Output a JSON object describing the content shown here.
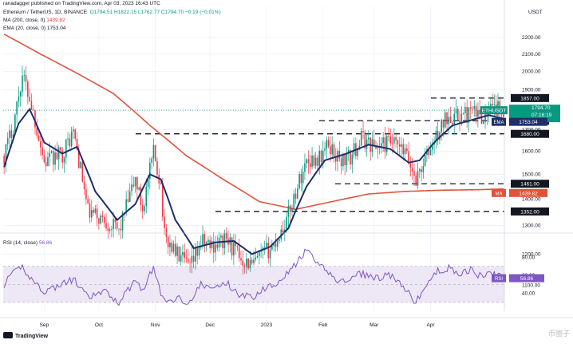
{
  "header": {
    "published": "ranadagger published on TradingView.com, Apr 03, 2023 16:43 UTC",
    "symbol_line": "Ethereum / TetherUS, 1D, BINANCE",
    "ohlc": "O1794.51 H1822.15 L1762.77 C1794.70 −0.19 (−0.01%)",
    "ma_label": "MA (200, close, 0)",
    "ma_value": "1439.82",
    "ema_label": "EMA (20, close, 0)",
    "ema_value": "1753.04",
    "rsi_label": "RSI (14, close)",
    "rsi_value": "56.86"
  },
  "footer": {
    "brand": "TradingView",
    "watermark": "币圈子"
  },
  "colors": {
    "up": "#089981",
    "down": "#f23645",
    "ema": "#1e2f6b",
    "ma": "#e0533a",
    "rsi": "#7e57c2",
    "rsi_band": "#ede7f6"
  },
  "chart_data": [
    {
      "type": "candlestick",
      "title": "Ethereum / TetherUS, 1D, BINANCE",
      "price_axis_unit": "USDT",
      "ylim": [
        1000,
        2400
      ],
      "y_ticks": [
        1100,
        1200,
        1300,
        1400,
        1500,
        1600,
        1700,
        1800,
        1900,
        2000,
        2100,
        2200
      ],
      "x_tick_labels": [
        "Sep",
        "Oct",
        "Nov",
        "Dec",
        "2023",
        "Feb",
        "Mar",
        "Apr"
      ],
      "horizontal_levels": [
        {
          "label": "1857.00",
          "value": 1857
        },
        {
          "label": "1743.00",
          "value": 1743
        },
        {
          "label": "1680.00",
          "value": 1680
        },
        {
          "label": "1461.00",
          "value": 1461
        },
        {
          "label": "1352.00",
          "value": 1352
        }
      ],
      "price_tags": [
        {
          "label": "ETHUSDT",
          "value": "1794.70",
          "sub": "07:16:19",
          "price": 1794.7,
          "color": "#089981"
        },
        {
          "label": "EMA",
          "value": "1753.04",
          "price": 1753.04,
          "color": "#1e2f6b"
        },
        {
          "label": "MA",
          "value": "1439.82",
          "price": 1439.82,
          "color": "#e0533a"
        }
      ],
      "anchors": [
        [
          0,
          1580
        ],
        [
          5,
          1720
        ],
        [
          10,
          1980
        ],
        [
          14,
          1860
        ],
        [
          22,
          1550
        ],
        [
          32,
          1590
        ],
        [
          38,
          1690
        ],
        [
          46,
          1350
        ],
        [
          55,
          1320
        ],
        [
          63,
          1280
        ],
        [
          72,
          1480
        ],
        [
          76,
          1360
        ],
        [
          82,
          1590
        ],
        [
          86,
          1460
        ],
        [
          88,
          1260
        ],
        [
          95,
          1200
        ],
        [
          102,
          1150
        ],
        [
          108,
          1240
        ],
        [
          114,
          1230
        ],
        [
          122,
          1250
        ],
        [
          128,
          1200
        ],
        [
          136,
          1160
        ],
        [
          142,
          1200
        ],
        [
          148,
          1230
        ],
        [
          155,
          1320
        ],
        [
          160,
          1430
        ],
        [
          166,
          1560
        ],
        [
          173,
          1570
        ],
        [
          178,
          1630
        ],
        [
          184,
          1560
        ],
        [
          190,
          1570
        ],
        [
          196,
          1660
        ],
        [
          204,
          1620
        ],
        [
          212,
          1640
        ],
        [
          220,
          1590
        ],
        [
          226,
          1480
        ],
        [
          232,
          1580
        ],
        [
          238,
          1680
        ],
        [
          244,
          1780
        ],
        [
          248,
          1760
        ],
        [
          256,
          1780
        ],
        [
          262,
          1770
        ],
        [
          266,
          1790
        ],
        [
          270,
          1800
        ],
        [
          274,
          1795
        ]
      ],
      "ema_anchors": [
        [
          0,
          1530
        ],
        [
          8,
          1730
        ],
        [
          14,
          1800
        ],
        [
          22,
          1640
        ],
        [
          32,
          1590
        ],
        [
          40,
          1620
        ],
        [
          50,
          1430
        ],
        [
          62,
          1320
        ],
        [
          72,
          1380
        ],
        [
          80,
          1500
        ],
        [
          86,
          1480
        ],
        [
          94,
          1320
        ],
        [
          104,
          1220
        ],
        [
          116,
          1240
        ],
        [
          126,
          1245
        ],
        [
          136,
          1200
        ],
        [
          146,
          1225
        ],
        [
          156,
          1290
        ],
        [
          166,
          1450
        ],
        [
          176,
          1560
        ],
        [
          188,
          1590
        ],
        [
          200,
          1630
        ],
        [
          212,
          1610
        ],
        [
          222,
          1550
        ],
        [
          228,
          1560
        ],
        [
          236,
          1640
        ],
        [
          246,
          1720
        ],
        [
          256,
          1745
        ],
        [
          266,
          1770
        ],
        [
          274,
          1753
        ]
      ],
      "ma_anchors": [
        [
          0,
          2220
        ],
        [
          20,
          2100
        ],
        [
          40,
          1990
        ],
        [
          60,
          1880
        ],
        [
          80,
          1720
        ],
        [
          100,
          1580
        ],
        [
          120,
          1480
        ],
        [
          140,
          1390
        ],
        [
          160,
          1360
        ],
        [
          180,
          1390
        ],
        [
          200,
          1420
        ],
        [
          220,
          1430
        ],
        [
          240,
          1435
        ],
        [
          260,
          1437
        ],
        [
          274,
          1440
        ]
      ]
    },
    {
      "type": "line",
      "title": "RSI (14, close)",
      "ylim": [
        20,
        100
      ],
      "y_ticks": [
        40,
        60,
        80
      ],
      "band": [
        30,
        70
      ],
      "series": [
        {
          "name": "RSI",
          "anchors": [
            [
              0,
              50
            ],
            [
              5,
              62
            ],
            [
              10,
              70
            ],
            [
              14,
              58
            ],
            [
              22,
              42
            ],
            [
              32,
              50
            ],
            [
              38,
              56
            ],
            [
              46,
              35
            ],
            [
              55,
              42
            ],
            [
              63,
              30
            ],
            [
              72,
              55
            ],
            [
              76,
              44
            ],
            [
              82,
              69
            ],
            [
              86,
              40
            ],
            [
              88,
              30
            ],
            [
              95,
              35
            ],
            [
              102,
              30
            ],
            [
              108,
              50
            ],
            [
              114,
              45
            ],
            [
              122,
              52
            ],
            [
              128,
              40
            ],
            [
              136,
              35
            ],
            [
              142,
              45
            ],
            [
              148,
              50
            ],
            [
              155,
              62
            ],
            [
              160,
              72
            ],
            [
              166,
              88
            ],
            [
              170,
              78
            ],
            [
              173,
              70
            ],
            [
              178,
              64
            ],
            [
              184,
              52
            ],
            [
              190,
              56
            ],
            [
              196,
              62
            ],
            [
              204,
              57
            ],
            [
              212,
              60
            ],
            [
              220,
              44
            ],
            [
              226,
              30
            ],
            [
              232,
              50
            ],
            [
              238,
              65
            ],
            [
              244,
              68
            ],
            [
              248,
              62
            ],
            [
              256,
              66
            ],
            [
              262,
              58
            ],
            [
              266,
              62
            ],
            [
              270,
              60
            ],
            [
              274,
              57
            ]
          ]
        }
      ]
    }
  ]
}
